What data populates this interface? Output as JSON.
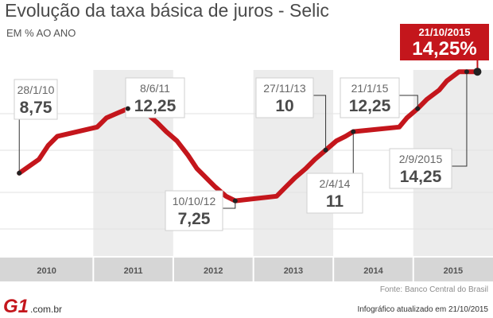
{
  "header": {
    "title": "Evolução da taxa básica de juros - Selic",
    "subtitle": "EM % AO ANO"
  },
  "current": {
    "date": "21/10/2015",
    "value": "14,25%"
  },
  "footer": {
    "source": "Fonte: Banco Central do Brasil",
    "updated": "Infográfico atualizado em 21/10/2015",
    "logo_mark": "G1",
    "logo_domain": ".com.br"
  },
  "colors": {
    "line": "#c4161c",
    "band_light": "#ffffff",
    "band_dark": "#ececec",
    "axis_bar": "#d6d6d6"
  },
  "chart_data": {
    "type": "line",
    "title": "Evolução da taxa básica de juros - Selic",
    "ylabel": "EM % AO ANO",
    "ylim": [
      6.5,
      15.25
    ],
    "grid": true,
    "x_categories": [
      "2010",
      "2011",
      "2012",
      "2013",
      "2014",
      "2015"
    ],
    "series": [
      {
        "values": [
          {
            "date": "2010-01-28",
            "y": 8.75
          },
          {
            "date": "2010-04-28",
            "y": 9.5
          },
          {
            "date": "2010-06-09",
            "y": 10.25
          },
          {
            "date": "2010-07-21",
            "y": 10.75
          },
          {
            "date": "2011-01-19",
            "y": 11.25
          },
          {
            "date": "2011-03-02",
            "y": 11.75
          },
          {
            "date": "2011-04-20",
            "y": 12.0
          },
          {
            "date": "2011-06-08",
            "y": 12.25
          },
          {
            "date": "2011-07-20",
            "y": 12.5
          },
          {
            "date": "2011-08-31",
            "y": 12.0
          },
          {
            "date": "2011-10-19",
            "y": 11.5
          },
          {
            "date": "2011-11-30",
            "y": 11.0
          },
          {
            "date": "2012-01-18",
            "y": 10.5
          },
          {
            "date": "2012-03-07",
            "y": 9.75
          },
          {
            "date": "2012-04-18",
            "y": 9.0
          },
          {
            "date": "2012-05-30",
            "y": 8.5
          },
          {
            "date": "2012-07-11",
            "y": 8.0
          },
          {
            "date": "2012-08-29",
            "y": 7.5
          },
          {
            "date": "2012-10-10",
            "y": 7.25
          },
          {
            "date": "2013-04-17",
            "y": 7.5
          },
          {
            "date": "2013-05-29",
            "y": 8.0
          },
          {
            "date": "2013-07-10",
            "y": 8.5
          },
          {
            "date": "2013-08-28",
            "y": 9.0
          },
          {
            "date": "2013-10-09",
            "y": 9.5
          },
          {
            "date": "2013-11-27",
            "y": 10.0
          },
          {
            "date": "2014-01-15",
            "y": 10.5
          },
          {
            "date": "2014-02-26",
            "y": 10.75
          },
          {
            "date": "2014-04-02",
            "y": 11.0
          },
          {
            "date": "2014-10-29",
            "y": 11.25
          },
          {
            "date": "2014-12-03",
            "y": 11.75
          },
          {
            "date": "2015-01-21",
            "y": 12.25
          },
          {
            "date": "2015-03-04",
            "y": 12.75
          },
          {
            "date": "2015-04-29",
            "y": 13.25
          },
          {
            "date": "2015-06-03",
            "y": 13.75
          },
          {
            "date": "2015-07-29",
            "y": 14.25
          },
          {
            "date": "2015-09-02",
            "y": 14.25
          },
          {
            "date": "2015-10-21",
            "y": 14.25
          }
        ]
      }
    ],
    "annotations": [
      {
        "date": "2010-01-28",
        "date_label": "28/1/10",
        "value_label": "8,75"
      },
      {
        "date": "2011-06-08",
        "date_label": "8/6/11",
        "value_label": "12,25"
      },
      {
        "date": "2012-10-10",
        "date_label": "10/10/12",
        "value_label": "7,25"
      },
      {
        "date": "2013-11-27",
        "date_label": "27/11/13",
        "value_label": "10"
      },
      {
        "date": "2014-04-02",
        "date_label": "2/4/14",
        "value_label": "11"
      },
      {
        "date": "2015-01-21",
        "date_label": "21/1/15",
        "value_label": "12,25"
      },
      {
        "date": "2015-09-02",
        "date_label": "2/9/2015",
        "value_label": "14,25"
      }
    ]
  }
}
